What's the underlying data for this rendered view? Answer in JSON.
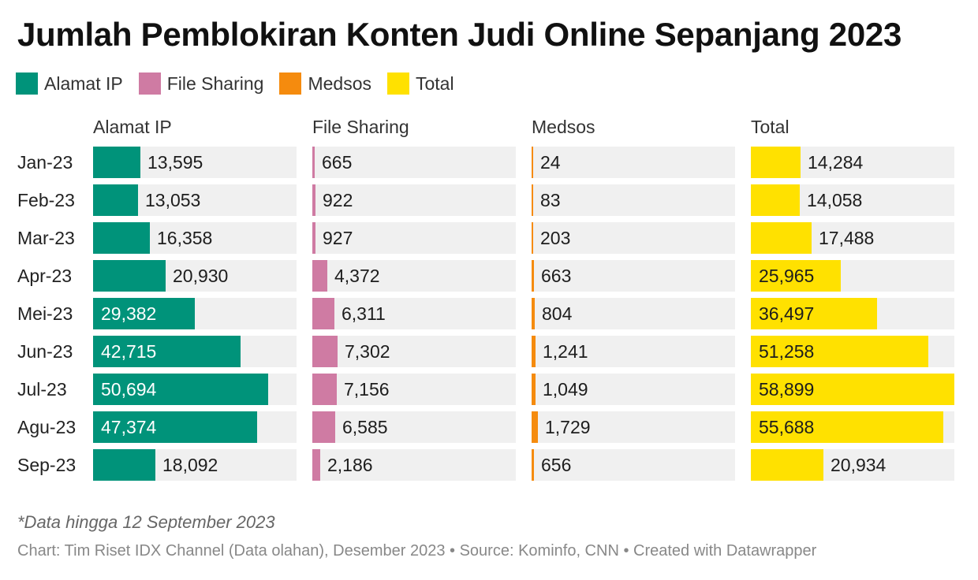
{
  "chart_data": {
    "type": "bar",
    "title": "Jumlah Pemblokiran Konten Judi Online Sepanjang 2023",
    "categories": [
      "Jan-23",
      "Feb-23",
      "Mar-23",
      "Apr-23",
      "Mei-23",
      "Jun-23",
      "Jul-23",
      "Agu-23",
      "Sep-23"
    ],
    "legend": [
      {
        "label": "Alamat IP",
        "color": "#00937a"
      },
      {
        "label": "File Sharing",
        "color": "#cf7ba3"
      },
      {
        "label": "Medsos",
        "color": "#f58b0e"
      },
      {
        "label": "Total",
        "color": "#ffe100"
      }
    ],
    "series": [
      {
        "name": "Alamat IP",
        "color": "#00937a",
        "values": [
          13595,
          13053,
          16358,
          20930,
          29382,
          42715,
          50694,
          47374,
          18092
        ],
        "labels": [
          "13,595",
          "13,053",
          "16,358",
          "20,930",
          "29,382",
          "42,715",
          "50,694",
          "47,374",
          "18,092"
        ]
      },
      {
        "name": "File Sharing",
        "color": "#cf7ba3",
        "values": [
          665,
          922,
          927,
          4372,
          6311,
          7302,
          7156,
          6585,
          2186
        ],
        "labels": [
          "665",
          "922",
          "927",
          "4,372",
          "6,311",
          "7,302",
          "7,156",
          "6,585",
          "2,186"
        ]
      },
      {
        "name": "Medsos",
        "color": "#f58b0e",
        "values": [
          24,
          83,
          203,
          663,
          804,
          1241,
          1049,
          1729,
          656
        ],
        "labels": [
          "24",
          "83",
          "203",
          "663",
          "804",
          "1,241",
          "1,049",
          "1,729",
          "656"
        ]
      },
      {
        "name": "Total",
        "color": "#ffe100",
        "values": [
          14284,
          14058,
          17488,
          25965,
          36497,
          51258,
          58899,
          55688,
          20934
        ],
        "labels": [
          "14,284",
          "14,058",
          "17,488",
          "25,965",
          "36,497",
          "51,258",
          "58,899",
          "55,688",
          "20,934"
        ]
      }
    ],
    "scale_max": 58899,
    "value_labels_inside_from": 25000,
    "legend_position": "top-left",
    "grid": false
  },
  "footer": {
    "note": "*Data hingga 12 September 2023",
    "source": "Chart: Tim Riset IDX Channel (Data olahan), Desember 2023 • Source: Kominfo, CNN • Created with Datawrapper"
  }
}
